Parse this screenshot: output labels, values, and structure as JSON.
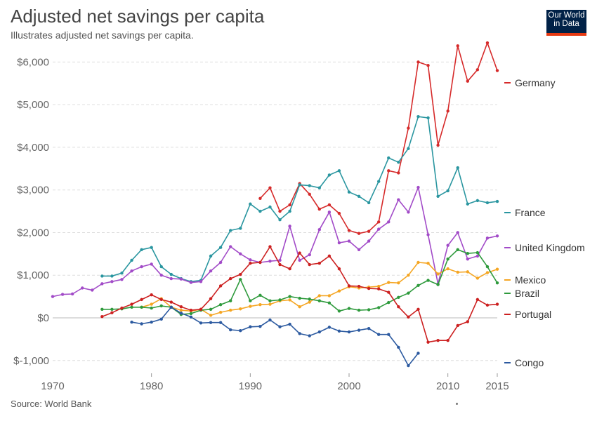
{
  "header": {
    "title": "Adjusted net savings per capita",
    "subtitle": "Illustrates adjusted net savings per capita."
  },
  "logo": {
    "line1": "Our World",
    "line2": "in Data"
  },
  "footer": {
    "source": "Source: World Bank"
  },
  "colors": {
    "Germany": "#d62a2a",
    "France": "#2a96a0",
    "United Kingdom": "#a24bc8",
    "Mexico": "#f5a623",
    "Brazil": "#2e9a3c",
    "Portugal": "#cc2020",
    "Congo": "#2c5aa0",
    "grid": "#dddddd",
    "zero": "#bbbbbb"
  },
  "chart_data": {
    "type": "line",
    "title": "Adjusted net savings per capita",
    "xlabel": "",
    "ylabel": "",
    "xlim": [
      1970,
      2015
    ],
    "ylim": [
      -1300,
      6500
    ],
    "x_ticks": [
      1970,
      1980,
      1990,
      2000,
      2010,
      2015
    ],
    "y_ticks": [
      {
        "value": 6000,
        "label": "$6,000"
      },
      {
        "value": 5000,
        "label": "$5,000"
      },
      {
        "value": 4000,
        "label": "$4,000"
      },
      {
        "value": 3000,
        "label": "$3,000"
      },
      {
        "value": 2000,
        "label": "$2,000"
      },
      {
        "value": 1000,
        "label": "$1,000"
      },
      {
        "value": 0,
        "label": "$0"
      },
      {
        "value": -1000,
        "label": "$-1,000"
      }
    ],
    "grid": true,
    "legend": "right",
    "series": [
      {
        "name": "Germany",
        "points": [
          [
            1991,
            2800
          ],
          [
            1992,
            3050
          ],
          [
            1993,
            2500
          ],
          [
            1994,
            2650
          ],
          [
            1995,
            3150
          ],
          [
            1996,
            2900
          ],
          [
            1997,
            2550
          ],
          [
            1998,
            2650
          ],
          [
            1999,
            2450
          ],
          [
            2000,
            2050
          ],
          [
            2001,
            1980
          ],
          [
            2002,
            2030
          ],
          [
            2003,
            2250
          ],
          [
            2004,
            3450
          ],
          [
            2005,
            3400
          ],
          [
            2006,
            4450
          ],
          [
            2007,
            6000
          ],
          [
            2008,
            5920
          ],
          [
            2009,
            4050
          ],
          [
            2010,
            4850
          ],
          [
            2011,
            6380
          ],
          [
            2012,
            5550
          ],
          [
            2013,
            5820
          ],
          [
            2014,
            6450
          ],
          [
            2015,
            5800
          ]
        ]
      },
      {
        "name": "France",
        "points": [
          [
            1975,
            980
          ],
          [
            1976,
            980
          ],
          [
            1977,
            1050
          ],
          [
            1978,
            1350
          ],
          [
            1979,
            1600
          ],
          [
            1980,
            1650
          ],
          [
            1981,
            1200
          ],
          [
            1982,
            1020
          ],
          [
            1983,
            920
          ],
          [
            1984,
            850
          ],
          [
            1985,
            880
          ],
          [
            1986,
            1450
          ],
          [
            1987,
            1650
          ],
          [
            1988,
            2050
          ],
          [
            1989,
            2100
          ],
          [
            1990,
            2670
          ],
          [
            1991,
            2500
          ],
          [
            1992,
            2600
          ],
          [
            1993,
            2300
          ],
          [
            1994,
            2500
          ],
          [
            1995,
            3120
          ],
          [
            1996,
            3100
          ],
          [
            1997,
            3050
          ],
          [
            1998,
            3350
          ],
          [
            1999,
            3450
          ],
          [
            2000,
            2950
          ],
          [
            2001,
            2850
          ],
          [
            2002,
            2700
          ],
          [
            2003,
            3200
          ],
          [
            2004,
            3750
          ],
          [
            2005,
            3650
          ],
          [
            2006,
            3970
          ],
          [
            2007,
            4720
          ],
          [
            2008,
            4690
          ],
          [
            2009,
            2850
          ],
          [
            2010,
            2980
          ],
          [
            2011,
            3520
          ],
          [
            2012,
            2670
          ],
          [
            2013,
            2750
          ],
          [
            2014,
            2700
          ],
          [
            2015,
            2730
          ]
        ]
      },
      {
        "name": "United Kingdom",
        "points": [
          [
            1970,
            500
          ],
          [
            1971,
            550
          ],
          [
            1972,
            560
          ],
          [
            1973,
            700
          ],
          [
            1974,
            650
          ],
          [
            1975,
            800
          ],
          [
            1976,
            850
          ],
          [
            1977,
            900
          ],
          [
            1978,
            1100
          ],
          [
            1979,
            1200
          ],
          [
            1980,
            1260
          ],
          [
            1981,
            1000
          ],
          [
            1982,
            920
          ],
          [
            1983,
            910
          ],
          [
            1984,
            830
          ],
          [
            1985,
            850
          ],
          [
            1986,
            1100
          ],
          [
            1987,
            1300
          ],
          [
            1988,
            1670
          ],
          [
            1989,
            1500
          ],
          [
            1990,
            1360
          ],
          [
            1991,
            1300
          ],
          [
            1992,
            1330
          ],
          [
            1993,
            1350
          ],
          [
            1994,
            2150
          ],
          [
            1995,
            1350
          ],
          [
            1996,
            1480
          ],
          [
            1997,
            2070
          ],
          [
            1998,
            2480
          ],
          [
            1999,
            1760
          ],
          [
            2000,
            1800
          ],
          [
            2001,
            1600
          ],
          [
            2002,
            1800
          ],
          [
            2003,
            2080
          ],
          [
            2004,
            2250
          ],
          [
            2005,
            2770
          ],
          [
            2006,
            2480
          ],
          [
            2007,
            3060
          ],
          [
            2008,
            1950
          ],
          [
            2009,
            800
          ],
          [
            2010,
            1700
          ],
          [
            2011,
            2000
          ],
          [
            2012,
            1380
          ],
          [
            2013,
            1450
          ],
          [
            2014,
            1870
          ],
          [
            2015,
            1920
          ]
        ]
      },
      {
        "name": "Mexico",
        "points": [
          [
            1979,
            250
          ],
          [
            1980,
            320
          ],
          [
            1981,
            450
          ],
          [
            1982,
            250
          ],
          [
            1983,
            180
          ],
          [
            1984,
            160
          ],
          [
            1985,
            200
          ],
          [
            1986,
            60
          ],
          [
            1987,
            130
          ],
          [
            1988,
            180
          ],
          [
            1989,
            210
          ],
          [
            1990,
            270
          ],
          [
            1991,
            310
          ],
          [
            1992,
            320
          ],
          [
            1993,
            400
          ],
          [
            1994,
            420
          ],
          [
            1995,
            260
          ],
          [
            1996,
            370
          ],
          [
            1997,
            520
          ],
          [
            1998,
            520
          ],
          [
            1999,
            630
          ],
          [
            2000,
            730
          ],
          [
            2001,
            700
          ],
          [
            2002,
            720
          ],
          [
            2003,
            740
          ],
          [
            2004,
            830
          ],
          [
            2005,
            820
          ],
          [
            2006,
            1000
          ],
          [
            2007,
            1300
          ],
          [
            2008,
            1280
          ],
          [
            2009,
            1030
          ],
          [
            2010,
            1150
          ],
          [
            2011,
            1070
          ],
          [
            2012,
            1080
          ],
          [
            2013,
            930
          ],
          [
            2014,
            1060
          ],
          [
            2015,
            1140
          ]
        ]
      },
      {
        "name": "Brazil",
        "points": [
          [
            1975,
            200
          ],
          [
            1976,
            200
          ],
          [
            1977,
            210
          ],
          [
            1978,
            250
          ],
          [
            1979,
            250
          ],
          [
            1980,
            230
          ],
          [
            1981,
            280
          ],
          [
            1982,
            250
          ],
          [
            1983,
            80
          ],
          [
            1984,
            100
          ],
          [
            1985,
            180
          ],
          [
            1986,
            200
          ],
          [
            1987,
            310
          ],
          [
            1988,
            400
          ],
          [
            1989,
            900
          ],
          [
            1990,
            400
          ],
          [
            1991,
            530
          ],
          [
            1992,
            400
          ],
          [
            1993,
            420
          ],
          [
            1994,
            500
          ],
          [
            1995,
            460
          ],
          [
            1996,
            440
          ],
          [
            1997,
            400
          ],
          [
            1998,
            350
          ],
          [
            1999,
            160
          ],
          [
            2000,
            220
          ],
          [
            2001,
            180
          ],
          [
            2002,
            190
          ],
          [
            2003,
            240
          ],
          [
            2004,
            360
          ],
          [
            2005,
            480
          ],
          [
            2006,
            580
          ],
          [
            2007,
            760
          ],
          [
            2008,
            880
          ],
          [
            2009,
            780
          ],
          [
            2010,
            1380
          ],
          [
            2011,
            1600
          ],
          [
            2012,
            1510
          ],
          [
            2013,
            1530
          ],
          [
            2014,
            1200
          ],
          [
            2015,
            820
          ]
        ]
      },
      {
        "name": "Portugal",
        "points": [
          [
            1975,
            30
          ],
          [
            1976,
            120
          ],
          [
            1977,
            230
          ],
          [
            1978,
            320
          ],
          [
            1979,
            430
          ],
          [
            1980,
            540
          ],
          [
            1981,
            430
          ],
          [
            1982,
            370
          ],
          [
            1983,
            260
          ],
          [
            1984,
            180
          ],
          [
            1985,
            200
          ],
          [
            1986,
            450
          ],
          [
            1987,
            750
          ],
          [
            1988,
            920
          ],
          [
            1989,
            1020
          ],
          [
            1990,
            1280
          ],
          [
            1991,
            1300
          ],
          [
            1992,
            1670
          ],
          [
            1993,
            1250
          ],
          [
            1994,
            1150
          ],
          [
            1995,
            1520
          ],
          [
            1996,
            1250
          ],
          [
            1997,
            1280
          ],
          [
            1998,
            1450
          ],
          [
            1999,
            1150
          ],
          [
            2000,
            750
          ],
          [
            2001,
            740
          ],
          [
            2002,
            690
          ],
          [
            2003,
            680
          ],
          [
            2004,
            600
          ],
          [
            2005,
            260
          ],
          [
            2006,
            20
          ],
          [
            2007,
            200
          ],
          [
            2008,
            -570
          ],
          [
            2009,
            -530
          ],
          [
            2010,
            -530
          ],
          [
            2011,
            -180
          ],
          [
            2012,
            -90
          ],
          [
            2013,
            430
          ],
          [
            2014,
            300
          ],
          [
            2015,
            320
          ]
        ]
      },
      {
        "name": "Congo",
        "points": [
          [
            1978,
            -100
          ],
          [
            1979,
            -140
          ],
          [
            1980,
            -100
          ],
          [
            1981,
            -30
          ],
          [
            1982,
            250
          ],
          [
            1983,
            110
          ],
          [
            1984,
            20
          ],
          [
            1985,
            -120
          ],
          [
            1986,
            -110
          ],
          [
            1987,
            -110
          ],
          [
            1988,
            -280
          ],
          [
            1989,
            -300
          ],
          [
            1990,
            -210
          ],
          [
            1991,
            -200
          ],
          [
            1992,
            -50
          ],
          [
            1993,
            -210
          ],
          [
            1994,
            -150
          ],
          [
            1995,
            -370
          ],
          [
            1996,
            -420
          ],
          [
            1997,
            -330
          ],
          [
            1998,
            -220
          ],
          [
            1999,
            -310
          ],
          [
            2000,
            -330
          ],
          [
            2001,
            -290
          ],
          [
            2002,
            -250
          ],
          [
            2003,
            -390
          ],
          [
            2004,
            -390
          ],
          [
            2005,
            -690
          ],
          [
            2006,
            -1120
          ],
          [
            2007,
            -830
          ]
        ]
      }
    ]
  }
}
